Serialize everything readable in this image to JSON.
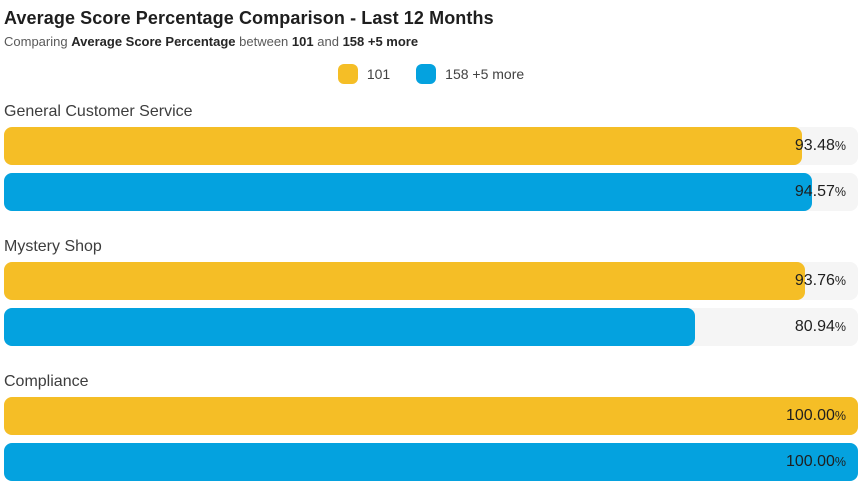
{
  "header": {
    "title": "Average Score Percentage Comparison - Last 12 Months",
    "subtitle": {
      "prefix": "Comparing",
      "metric": "Average Score Percentage",
      "between": "between",
      "series_a": "101",
      "and": "and",
      "series_b": "158 +5 more"
    }
  },
  "legend": {
    "items": [
      {
        "label": "101",
        "color": "#F5BE26"
      },
      {
        "label": "158 +5 more",
        "color": "#04A2DF"
      }
    ]
  },
  "chart_data": {
    "type": "bar",
    "orientation": "horizontal",
    "title": "Average Score Percentage Comparison - Last 12 Months",
    "categories": [
      "General Customer Service",
      "Mystery Shop",
      "Compliance"
    ],
    "series": [
      {
        "name": "101",
        "color": "#F5BE26",
        "values": [
          93.48,
          93.76,
          100.0
        ]
      },
      {
        "name": "158 +5 more",
        "color": "#04A2DF",
        "values": [
          94.57,
          80.94,
          100.0
        ]
      }
    ],
    "value_labels": [
      [
        "93.48%",
        "94.57%"
      ],
      [
        "93.76%",
        "80.94%"
      ],
      [
        "100.00%",
        "100.00%"
      ]
    ],
    "xlim": [
      0,
      100
    ],
    "value_format": "percent",
    "grid": false,
    "legend_position": "top-center",
    "track_color": "#F5F5F5"
  }
}
